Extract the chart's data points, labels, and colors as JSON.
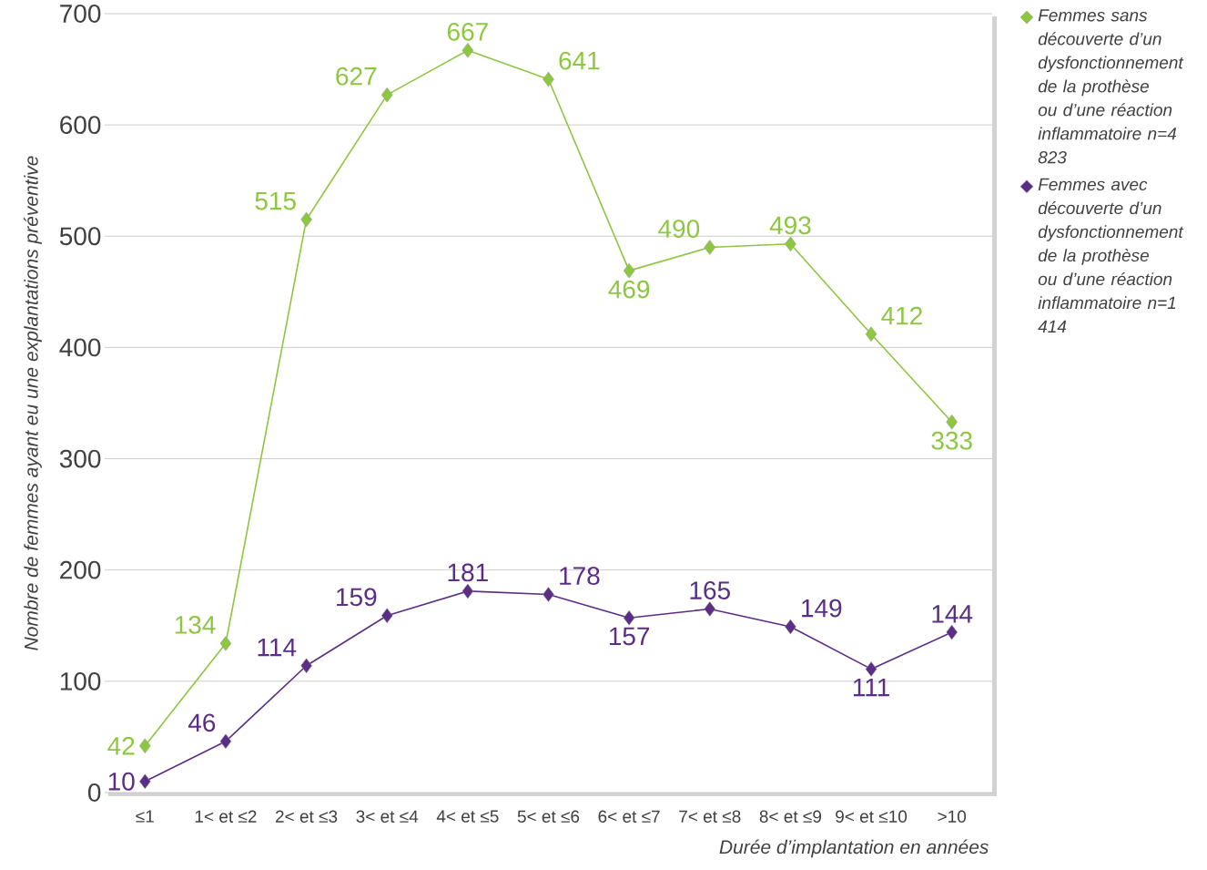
{
  "chart_data": {
    "type": "line",
    "xlabel": "Durée d’implantation en années",
    "ylabel": "Nombre de femmes ayant eu une explantations préventive",
    "categories": [
      "≤1",
      "1< et ≤2",
      "2< et ≤3",
      "3< et ≤4",
      "4< et ≤5",
      "5< et ≤6",
      "6< et ≤7",
      "7< et ≤8",
      "8< et ≤9",
      "9< et ≤10",
      ">10"
    ],
    "series": [
      {
        "name": "Femmes sans découverte d’un dysfonctionnement de la prothèse ou d’une réaction inflammatoire n=4 823",
        "color": "#8dc63f",
        "values": [
          42,
          134,
          515,
          627,
          667,
          641,
          469,
          490,
          493,
          412,
          333
        ]
      },
      {
        "name": "Femmes avec découverte d’un dysfonctionnement de la prothèse ou d’une réaction inflammatoire n=1 414",
        "color": "#5b2d86",
        "values": [
          10,
          46,
          114,
          159,
          181,
          178,
          157,
          165,
          149,
          111,
          144
        ]
      }
    ],
    "ylim": [
      0,
      700
    ],
    "yticks": [
      0,
      100,
      200,
      300,
      400,
      500,
      600,
      700
    ],
    "grid": "y",
    "legend": "right",
    "marker": "diamond",
    "line_style": "solid",
    "data_labels": true
  }
}
